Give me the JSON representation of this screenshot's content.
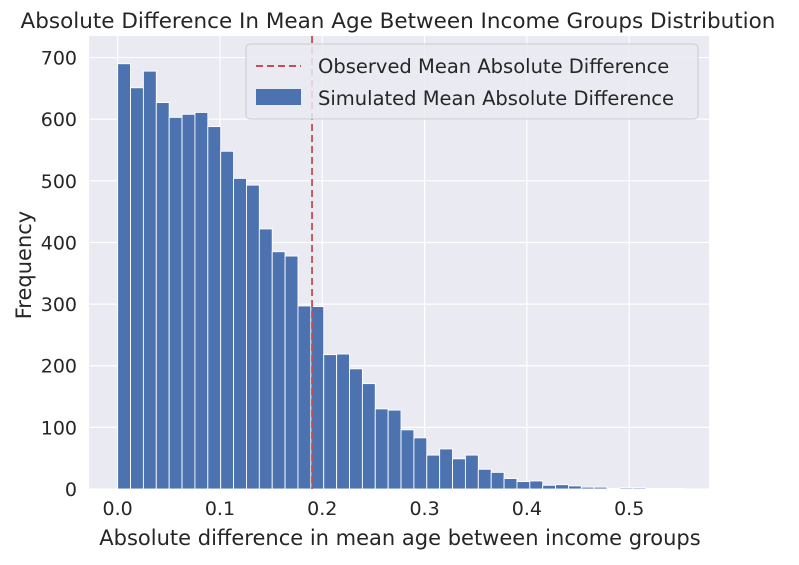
{
  "chart_data": {
    "type": "bar",
    "title": "Absolute Difference In Mean Age Between Income Groups Distribution",
    "xlabel": "Absolute difference in mean age between income groups",
    "ylabel": "Frequency",
    "xlim": [
      -0.028,
      0.578
    ],
    "ylim": [
      0,
      735
    ],
    "x_ticks": [
      0.0,
      0.1,
      0.2,
      0.3,
      0.4,
      0.5
    ],
    "x_tick_labels": [
      "0.0",
      "0.1",
      "0.2",
      "0.3",
      "0.4",
      "0.5"
    ],
    "y_ticks": [
      0,
      100,
      200,
      300,
      400,
      500,
      600,
      700
    ],
    "y_tick_labels": [
      "0",
      "100",
      "200",
      "300",
      "400",
      "500",
      "600",
      "700"
    ],
    "grid": true,
    "legend_position": "top-right",
    "bin_start": 0.0,
    "bin_width": 0.01259,
    "series": [
      {
        "name": "Simulated Mean Absolute Difference",
        "color": "#4c72b0",
        "values": [
          690,
          651,
          678,
          627,
          603,
          608,
          611,
          588,
          548,
          504,
          493,
          422,
          385,
          378,
          297,
          296,
          218,
          219,
          195,
          171,
          130,
          128,
          96,
          83,
          55,
          65,
          49,
          55,
          32,
          27,
          17,
          12,
          13,
          6,
          7,
          5,
          3,
          3,
          1,
          2,
          2,
          1,
          1,
          1
        ]
      }
    ],
    "reference_lines": [
      {
        "name": "Observed Mean Absolute Difference",
        "x": 0.19,
        "color": "#c44e52",
        "style": "dashed"
      }
    ]
  }
}
